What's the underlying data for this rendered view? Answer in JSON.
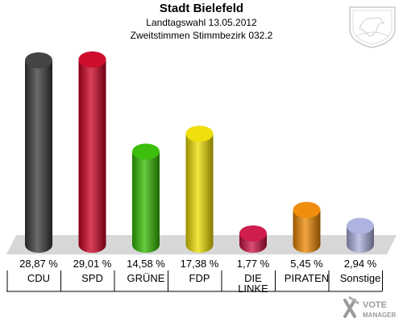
{
  "header": {
    "title": "Stadt Bielefeld",
    "subtitle": "Landtagswahl 13.05.2012",
    "subtitle2": "Zweitstimmen Stimmbezirk 032.2"
  },
  "chart_data": {
    "type": "bar",
    "title": "Stadt Bielefeld",
    "subtitle": "Landtagswahl 13.05.2012 / Zweitstimmen Stimmbezirk 032.2",
    "xlabel": "",
    "ylabel": "",
    "ylim": [
      0,
      30
    ],
    "grid": false,
    "legend": "none",
    "categories": [
      "CDU",
      "SPD",
      "GRÜNE",
      "FDP",
      "DIE LINKE",
      "PIRATEN",
      "Sonstige"
    ],
    "values": [
      28.87,
      29.01,
      14.58,
      17.38,
      1.77,
      5.45,
      2.94
    ],
    "labels": [
      "28,87 %",
      "29,01 %",
      "14,58 %",
      "17,38 %",
      "1,77 %",
      "5,45 %",
      "2,94 %"
    ],
    "colors": [
      "#3a3a3a",
      "#cc0022",
      "#33bb00",
      "#eedd00",
      "#cc1144",
      "#ee8800",
      "#aab0dd"
    ]
  },
  "watermark": {
    "text1": "VOTE",
    "text2": "MANAGER"
  }
}
